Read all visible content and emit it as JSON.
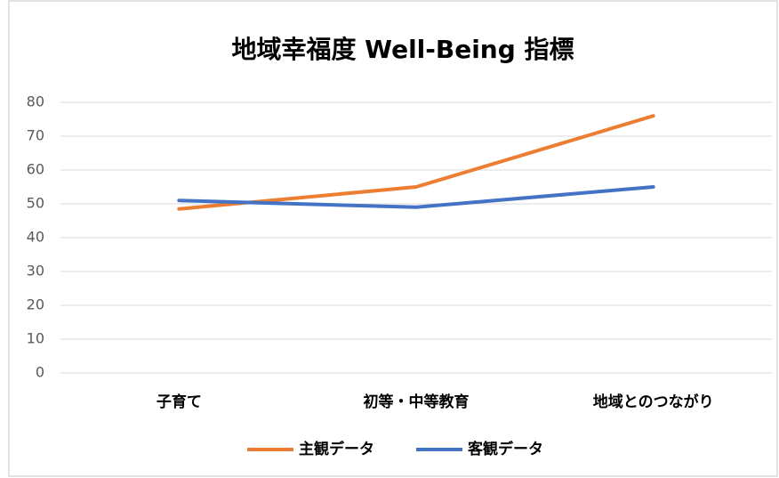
{
  "chart_data": {
    "type": "line",
    "title": "地域幸福度 Well-Being 指標",
    "categories": [
      "子育て",
      "初等・中等教育",
      "地域とのつながり"
    ],
    "series": [
      {
        "name": "主観データ",
        "color": "#ed7d31",
        "values": [
          48.5,
          55,
          76
        ]
      },
      {
        "name": "客観データ",
        "color": "#4472c4",
        "values": [
          51,
          49,
          55
        ]
      }
    ],
    "ylim": [
      0,
      80
    ],
    "yticks": [
      0,
      10,
      20,
      30,
      40,
      50,
      60,
      70,
      80
    ],
    "grid": true,
    "legend": "bottom"
  }
}
